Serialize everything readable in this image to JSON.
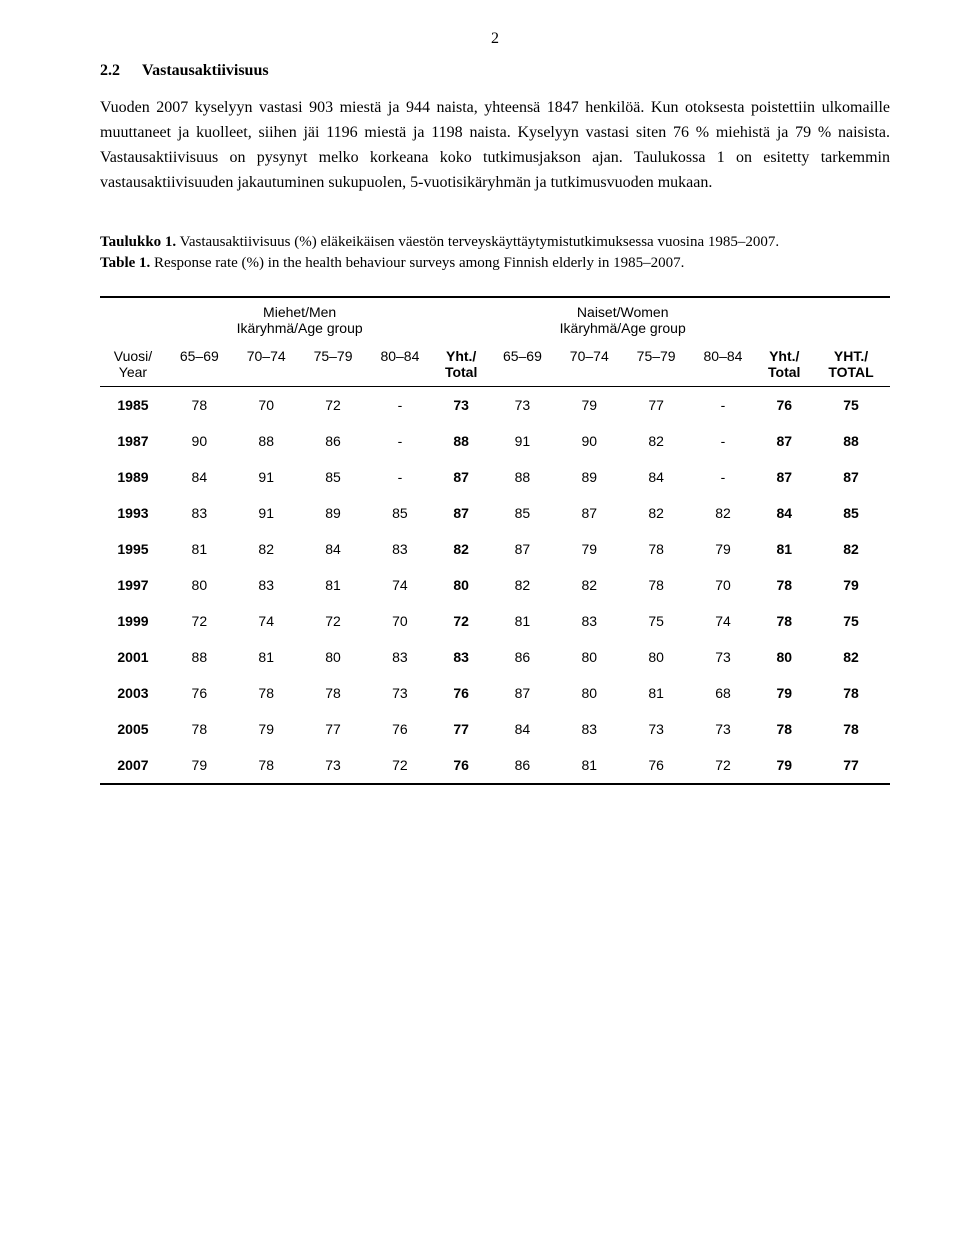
{
  "pageNumber": "2",
  "heading": {
    "num": "2.2",
    "title": "Vastausaktiivisuus"
  },
  "paragraph": "Vuoden 2007 kyselyyn vastasi 903 miestä ja 944 naista, yhteensä 1847 henkilöä. Kun otoksesta poistettiin ulkomaille muuttaneet ja kuolleet, siihen jäi 1196 miestä ja 1198 naista. Kyselyyn vastasi siten 76 % miehistä ja 79 % naisista. Vastausaktiivisuus on pysynyt melko korkeana koko tutkimusjakson ajan. Taulukossa 1 on esitetty tarkemmin vastausaktiivisuuden jakautuminen sukupuolen, 5-vuotisikäryhmän ja tutkimusvuoden mukaan.",
  "caption": {
    "t1bold": "Taulukko 1.",
    "t1rest": " Vastausaktiivisuus (%) eläkeikäisen väestön terveyskäyttäytymistutkimuksessa vuosina 1985–2007.",
    "t2bold": "Table 1.",
    "t2rest": " Response rate (%) in the health behaviour surveys among Finnish elderly in 1985–2007."
  },
  "table": {
    "groupHeaders": {
      "men": "Miehet/Men",
      "menSub": "Ikäryhmä/Age group",
      "women": "Naiset/Women",
      "womenSub": "Ikäryhmä/Age group"
    },
    "colHeaders": {
      "yearTop": "Vuosi/",
      "yearBot": "Year",
      "c65": "65–69",
      "c70": "70–74",
      "c75": "75–79",
      "c80": "80–84",
      "yhtTop": "Yht./",
      "yhtBot": "Total",
      "grandTop": "YHT./",
      "grandBot": "TOTAL"
    },
    "rows": [
      {
        "year": "1985",
        "m": [
          "78",
          "70",
          "72",
          "-"
        ],
        "mt": "73",
        "w": [
          "73",
          "79",
          "77",
          "-"
        ],
        "wt": "76",
        "g": "75"
      },
      {
        "year": "1987",
        "m": [
          "90",
          "88",
          "86",
          "-"
        ],
        "mt": "88",
        "w": [
          "91",
          "90",
          "82",
          "-"
        ],
        "wt": "87",
        "g": "88"
      },
      {
        "year": "1989",
        "m": [
          "84",
          "91",
          "85",
          "-"
        ],
        "mt": "87",
        "w": [
          "88",
          "89",
          "84",
          "-"
        ],
        "wt": "87",
        "g": "87"
      },
      {
        "year": "1993",
        "m": [
          "83",
          "91",
          "89",
          "85"
        ],
        "mt": "87",
        "w": [
          "85",
          "87",
          "82",
          "82"
        ],
        "wt": "84",
        "g": "85"
      },
      {
        "year": "1995",
        "m": [
          "81",
          "82",
          "84",
          "83"
        ],
        "mt": "82",
        "w": [
          "87",
          "79",
          "78",
          "79"
        ],
        "wt": "81",
        "g": "82"
      },
      {
        "year": "1997",
        "m": [
          "80",
          "83",
          "81",
          "74"
        ],
        "mt": "80",
        "w": [
          "82",
          "82",
          "78",
          "70"
        ],
        "wt": "78",
        "g": "79"
      },
      {
        "year": "1999",
        "m": [
          "72",
          "74",
          "72",
          "70"
        ],
        "mt": "72",
        "w": [
          "81",
          "83",
          "75",
          "74"
        ],
        "wt": "78",
        "g": "75"
      },
      {
        "year": "2001",
        "m": [
          "88",
          "81",
          "80",
          "83"
        ],
        "mt": "83",
        "w": [
          "86",
          "80",
          "80",
          "73"
        ],
        "wt": "80",
        "g": "82"
      },
      {
        "year": "2003",
        "m": [
          "76",
          "78",
          "78",
          "73"
        ],
        "mt": "76",
        "w": [
          "87",
          "80",
          "81",
          "68"
        ],
        "wt": "79",
        "g": "78"
      },
      {
        "year": "2005",
        "m": [
          "78",
          "79",
          "77",
          "76"
        ],
        "mt": "77",
        "w": [
          "84",
          "83",
          "73",
          "73"
        ],
        "wt": "78",
        "g": "78"
      },
      {
        "year": "2007",
        "m": [
          "79",
          "78",
          "73",
          "72"
        ],
        "mt": "76",
        "w": [
          "86",
          "81",
          "76",
          "72"
        ],
        "wt": "79",
        "g": "77"
      }
    ]
  }
}
